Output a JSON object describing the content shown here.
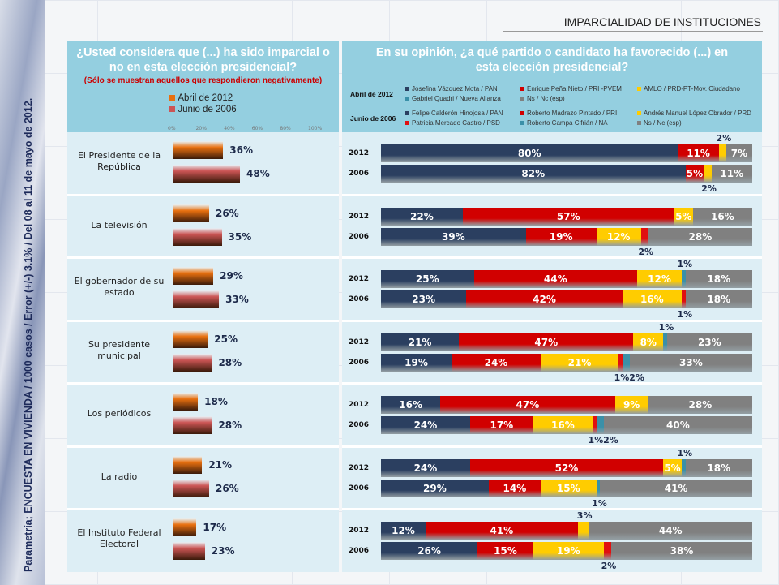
{
  "header": {
    "title": "IMPARCIALIDAD DE INSTITUCIONES",
    "side_note": "Parametría; ENCUESTA EN VIVIENDA / 1000 casos / Error (+/-) 3.1% / Del 08 al 11 de mayo de 2012."
  },
  "chart_data": [
    {
      "type": "bar",
      "orientation": "horizontal",
      "title": "¿Usted considera que (...) ha sido imparcial o no en esta elección presidencial?",
      "subtitle": "(Sólo se muestran aquellos que respondieron negativamente)",
      "categories": [
        "El Presidente de la República",
        "La televisión",
        "El gobernador de su estado",
        "Su presidente municipal",
        "Los periódicos",
        "La radio",
        "El Instituto Federal Electoral"
      ],
      "series": [
        {
          "name": "Abril de 2012",
          "color": "#e8700f",
          "values": [
            36,
            26,
            29,
            25,
            18,
            21,
            17
          ]
        },
        {
          "name": "Junio de 2006",
          "color": "#cc5555",
          "values": [
            48,
            35,
            33,
            28,
            28,
            26,
            23
          ]
        }
      ],
      "xlim": [
        0,
        100
      ],
      "xticks": [
        "0%",
        "20%",
        "40%",
        "60%",
        "80%",
        "100%"
      ],
      "legend": "top"
    },
    {
      "type": "bar",
      "orientation": "horizontal",
      "stacked": true,
      "title": "En su opinión, ¿a qué partido o candidato ha favorecido (...) en esta elección presidencial?",
      "legend_groups": [
        {
          "label": "Abril de 2012",
          "row_label": "2012",
          "series": [
            {
              "name": "Josefina Vázquez Mota / PAN",
              "color": "#2b3f60"
            },
            {
              "name": "Enrique Peña Nieto /  PRI -PVEM",
              "color": "#d10000"
            },
            {
              "name": "AMLO / PRD-PT-Mov. Ciudadano",
              "color": "#ffcc00"
            },
            {
              "name": "Gabriel Quadri / Nueva Alianza",
              "color": "#3a90a8"
            },
            {
              "name": "Ns / Nc  (esp)",
              "color": "#808080"
            }
          ]
        },
        {
          "label": "Junio de 2006",
          "row_label": "2006",
          "series": [
            {
              "name": "Felipe Calderón Hinojosa / PAN",
              "color": "#2b3f60"
            },
            {
              "name": "Roberto Madrazo Pintado / PRI",
              "color": "#d10000"
            },
            {
              "name": "Andrés Manuel López Obrador / PRD",
              "color": "#ffcc00"
            },
            {
              "name": "Patricia Mercado Castro / PSD",
              "color": "#e01010"
            },
            {
              "name": "Roberto Campa Cifrián / NA",
              "color": "#3a90a8"
            },
            {
              "name": "Ns / Nc  (esp)",
              "color": "#808080"
            }
          ]
        }
      ],
      "rows": [
        {
          "v2012": [
            80,
            11,
            2,
            0,
            7
          ],
          "v2006": [
            82,
            5,
            2,
            0,
            0,
            11
          ]
        },
        {
          "v2012": [
            22,
            57,
            5,
            0,
            16
          ],
          "v2006": [
            39,
            19,
            12,
            2,
            0,
            28
          ]
        },
        {
          "v2012": [
            25,
            44,
            12,
            1,
            18
          ],
          "v2006": [
            23,
            42,
            16,
            1,
            0,
            18
          ]
        },
        {
          "v2012": [
            21,
            47,
            8,
            1,
            23
          ],
          "v2006": [
            19,
            24,
            21,
            1,
            2,
            33
          ]
        },
        {
          "v2012": [
            16,
            47,
            9,
            0,
            28
          ],
          "v2006": [
            24,
            17,
            16,
            1,
            2,
            40
          ]
        },
        {
          "v2012": [
            24,
            52,
            5,
            1,
            18
          ],
          "v2006": [
            29,
            14,
            15,
            0,
            1,
            41
          ]
        },
        {
          "v2012": [
            12,
            41,
            3,
            0,
            44
          ],
          "v2006": [
            26,
            15,
            19,
            2,
            0,
            38
          ]
        }
      ]
    }
  ]
}
